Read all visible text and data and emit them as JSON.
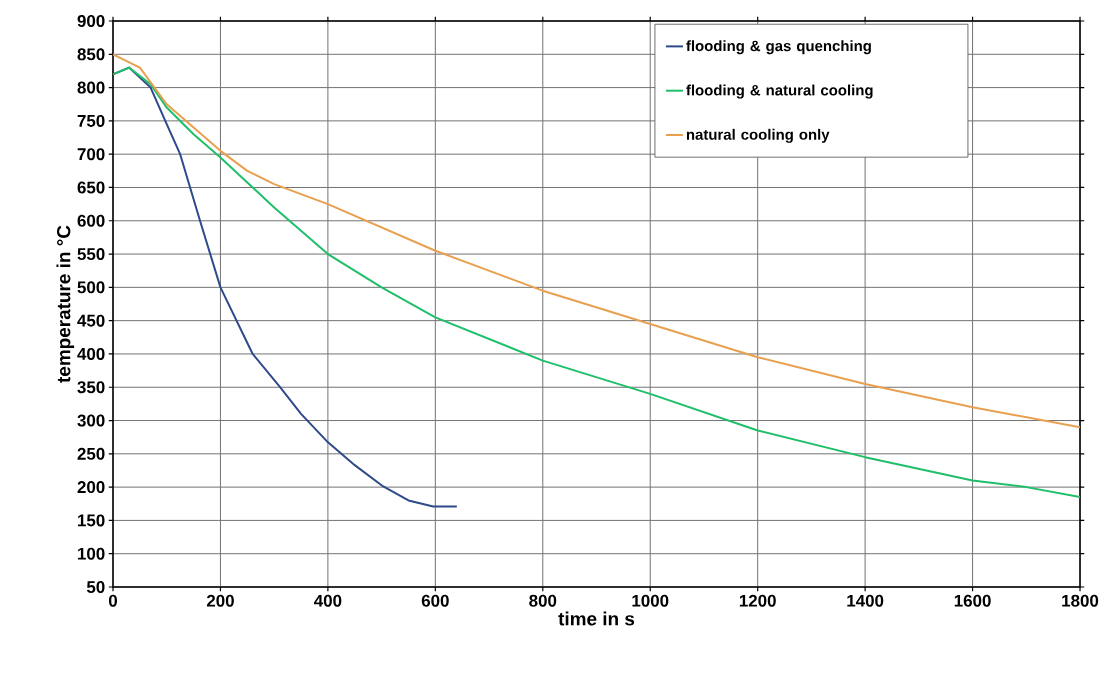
{
  "chart_data": {
    "type": "line",
    "xlabel": "time in s",
    "ylabel": "temperature in °C",
    "xlim": [
      0,
      1800
    ],
    "ylim": [
      50,
      900
    ],
    "xticks": [
      0,
      200,
      400,
      600,
      800,
      1000,
      1200,
      1400,
      1600,
      1800
    ],
    "yticks": [
      50,
      100,
      150,
      200,
      250,
      300,
      350,
      400,
      450,
      500,
      550,
      600,
      650,
      700,
      750,
      800,
      850,
      900
    ],
    "grid": true,
    "legend": "top right",
    "marker": "none",
    "line_style": "solid",
    "series": [
      {
        "name": "flooding  & gas quenching",
        "color": "#2e4a8a",
        "x": [
          0,
          30,
          70,
          100,
          125,
          162,
          200,
          260,
          311,
          350,
          398,
          450,
          503,
          550,
          596,
          640
        ],
        "values": [
          820,
          830,
          800,
          745,
          700,
          600,
          500,
          400,
          350,
          310,
          269,
          233,
          201,
          180,
          171,
          171
        ]
      },
      {
        "name": "flooding  & natural cooling",
        "color": "#1fbf6a",
        "x": [
          0,
          30,
          70,
          100,
          150,
          200,
          300,
          400,
          500,
          600,
          800,
          1000,
          1200,
          1400,
          1600,
          1700,
          1800
        ],
        "values": [
          820,
          830,
          805,
          770,
          730,
          695,
          620,
          550,
          500,
          455,
          390,
          340,
          285,
          245,
          210,
          200,
          185
        ]
      },
      {
        "name": "natural cooling only",
        "color": "#e8a050",
        "x": [
          0,
          50,
          100,
          150,
          200,
          250,
          300,
          400,
          500,
          600,
          800,
          1000,
          1200,
          1400,
          1600,
          1800
        ],
        "values": [
          850,
          830,
          775,
          740,
          705,
          675,
          655,
          625,
          590,
          555,
          495,
          445,
          395,
          355,
          320,
          290
        ]
      }
    ]
  }
}
